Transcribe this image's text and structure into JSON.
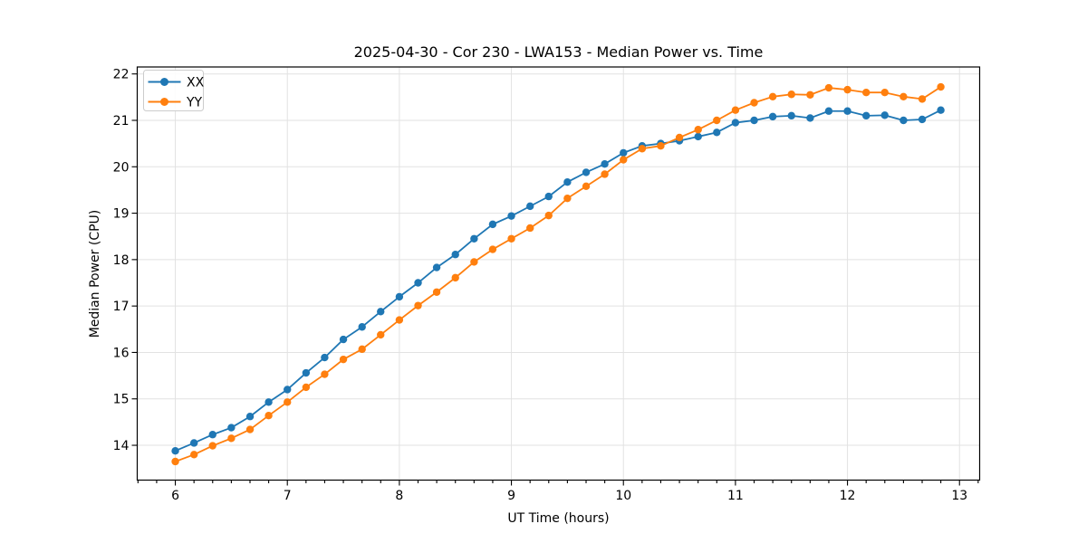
{
  "chart_data": {
    "type": "line",
    "title": "2025-04-30 - Cor 230 - LWA153 - Median Power vs. Time",
    "xlabel": "UT Time (hours)",
    "ylabel": "Median Power (CPU)",
    "xlim": [
      5.66,
      13.18
    ],
    "ylim": [
      13.25,
      22.15
    ],
    "grid": true,
    "legend_position": "upper left",
    "xticks": [
      6,
      7,
      8,
      9,
      10,
      11,
      12,
      13
    ],
    "yticks": [
      14,
      15,
      16,
      17,
      18,
      19,
      20,
      21,
      22
    ],
    "minor_tick_step_hours": 0.1667,
    "x": [
      6.0,
      6.167,
      6.333,
      6.5,
      6.667,
      6.833,
      7.0,
      7.167,
      7.333,
      7.5,
      7.667,
      7.833,
      8.0,
      8.167,
      8.333,
      8.5,
      8.667,
      8.833,
      9.0,
      9.167,
      9.333,
      9.5,
      9.667,
      9.833,
      10.0,
      10.167,
      10.333,
      10.5,
      10.667,
      10.833,
      11.0,
      11.167,
      11.333,
      11.5,
      11.667,
      11.833,
      12.0,
      12.167,
      12.333,
      12.5,
      12.667,
      12.833
    ],
    "series": [
      {
        "name": "XX",
        "color": "#1f77b4",
        "marker": "circle",
        "values": [
          13.88,
          14.05,
          14.23,
          14.38,
          14.62,
          14.93,
          15.2,
          15.56,
          15.89,
          16.28,
          16.55,
          16.88,
          17.2,
          17.5,
          17.83,
          18.11,
          18.45,
          18.76,
          18.94,
          19.15,
          19.36,
          19.67,
          19.88,
          20.06,
          20.3,
          20.45,
          20.5,
          20.56,
          20.65,
          20.74,
          20.95,
          21.0,
          21.08,
          21.1,
          21.05,
          21.2,
          21.2,
          21.1,
          21.11,
          21.0,
          21.02,
          21.22
        ]
      },
      {
        "name": "YY",
        "color": "#ff7f0e",
        "marker": "circle",
        "values": [
          13.65,
          13.8,
          13.99,
          14.15,
          14.34,
          14.64,
          14.93,
          15.25,
          15.53,
          15.85,
          16.07,
          16.38,
          16.7,
          17.01,
          17.3,
          17.61,
          17.95,
          18.22,
          18.45,
          18.68,
          18.95,
          19.32,
          19.58,
          19.84,
          20.15,
          20.39,
          20.45,
          20.63,
          20.8,
          21.0,
          21.22,
          21.38,
          21.51,
          21.56,
          21.55,
          21.7,
          21.66,
          21.6,
          21.6,
          21.51,
          21.46,
          21.72
        ]
      }
    ]
  },
  "colors": {
    "background": "#ffffff",
    "grid": "#e2e2e2",
    "spine": "#000000",
    "series_xx": "#1f77b4",
    "series_yy": "#ff7f0e"
  }
}
